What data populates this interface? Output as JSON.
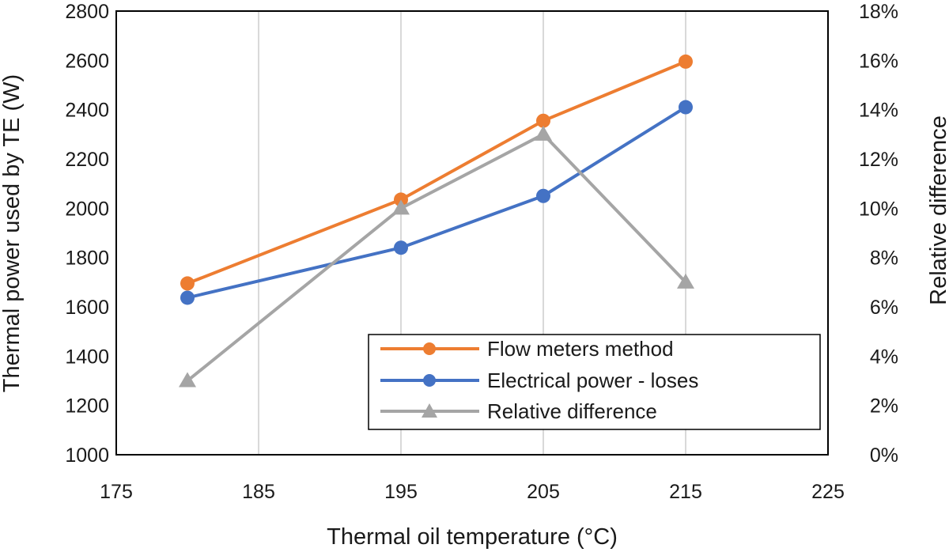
{
  "chart_data": {
    "type": "line",
    "title": "",
    "xlabel": "Thermal oil temperature (°C)",
    "ylabel": "Thermal power used by TE (W)",
    "y2label": "Relative difference",
    "xlim": [
      175,
      225
    ],
    "xticks": [
      "175",
      "185",
      "195",
      "205",
      "215",
      "225"
    ],
    "xtick_values": [
      175,
      185,
      195,
      205,
      215,
      225
    ],
    "ylim": [
      1000,
      2800
    ],
    "yticks": [
      "1000",
      "1200",
      "1400",
      "1600",
      "1800",
      "2000",
      "2200",
      "2400",
      "2600",
      "2800"
    ],
    "ytick_values": [
      1000,
      1200,
      1400,
      1600,
      1800,
      2000,
      2200,
      2400,
      2600,
      2800
    ],
    "y2lim": [
      0,
      18
    ],
    "y2ticks": [
      "0%",
      "2%",
      "4%",
      "6%",
      "8%",
      "10%",
      "12%",
      "14%",
      "16%",
      "18%"
    ],
    "y2tick_values": [
      0,
      2,
      4,
      6,
      8,
      10,
      12,
      14,
      16,
      18
    ],
    "grid": "vertical",
    "legend_position": "bottom-right",
    "series": [
      {
        "name": "Flow meters method",
        "axis": "left",
        "marker": "circle",
        "color": "#ED7D31",
        "x": [
          180,
          195,
          205,
          215
        ],
        "y": [
          1695,
          2035,
          2355,
          2595
        ]
      },
      {
        "name": "Electrical power - loses",
        "axis": "left",
        "marker": "circle",
        "color": "#4472C4",
        "x": [
          180,
          195,
          205,
          215
        ],
        "y": [
          1637,
          1840,
          2050,
          2410
        ]
      },
      {
        "name": "Relative difference",
        "axis": "right",
        "marker": "triangle",
        "color": "#A5A5A5",
        "x": [
          180,
          195,
          205,
          215
        ],
        "y": [
          3,
          10,
          13,
          7
        ]
      }
    ]
  }
}
